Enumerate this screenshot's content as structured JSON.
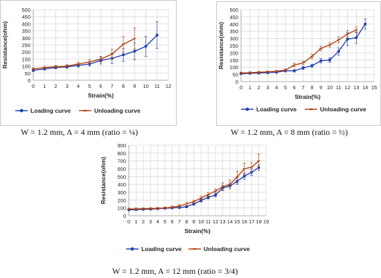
{
  "chart_data": [
    {
      "type": "line",
      "xlabel": "Strain(%)",
      "ylabel": "Resistance(ohm)",
      "xlim": [
        0,
        12
      ],
      "ylim": [
        0,
        500
      ],
      "xticks": [
        0,
        1,
        2,
        3,
        4,
        5,
        6,
        7,
        8,
        9,
        10,
        11,
        12
      ],
      "yticks": [
        0,
        50,
        100,
        150,
        200,
        250,
        300,
        350,
        400,
        450,
        500
      ],
      "legend_position": "bottom",
      "grid": true,
      "caption": "W = 1.2 mm, A = 4 mm (ratio = ¼)",
      "series": [
        {
          "name": "Loading curve",
          "color": "#2040b0",
          "x": [
            0,
            1,
            2,
            3,
            4,
            5,
            6,
            7,
            8,
            9,
            10,
            11
          ],
          "y": [
            70,
            80,
            90,
            95,
            105,
            115,
            140,
            155,
            180,
            205,
            240,
            320
          ],
          "err": [
            8,
            8,
            10,
            10,
            12,
            15,
            25,
            35,
            45,
            60,
            70,
            95
          ]
        },
        {
          "name": "Unloading curve",
          "color": "#b04010",
          "x": [
            0,
            1,
            2,
            3,
            4,
            5,
            6,
            7,
            8,
            9
          ],
          "y": [
            80,
            90,
            95,
            100,
            115,
            130,
            150,
            185,
            255,
            295
          ],
          "err": [
            8,
            8,
            10,
            10,
            12,
            15,
            20,
            35,
            55,
            75
          ]
        }
      ]
    },
    {
      "type": "line",
      "xlabel": "Strain(%)",
      "ylabel": "Resistance(ohm)",
      "xlim": [
        0,
        15
      ],
      "ylim": [
        0,
        500
      ],
      "xticks": [
        0,
        1,
        2,
        3,
        4,
        5,
        6,
        7,
        8,
        9,
        10,
        11,
        12,
        13,
        14,
        15
      ],
      "yticks": [
        0,
        50,
        100,
        150,
        200,
        250,
        300,
        350,
        400,
        450,
        500
      ],
      "legend_position": "bottom",
      "grid": true,
      "caption": "W = 1.2 mm, A = 8 mm (ratio = ½)",
      "series": [
        {
          "name": "Loading curve",
          "color": "#2040b0",
          "x": [
            0,
            1,
            2,
            3,
            4,
            5,
            6,
            7,
            8,
            9,
            10,
            11,
            12,
            13,
            14
          ],
          "y": [
            55,
            58,
            60,
            62,
            65,
            75,
            75,
            95,
            110,
            145,
            150,
            210,
            295,
            305,
            400
          ],
          "err": [
            6,
            6,
            6,
            6,
            6,
            8,
            8,
            10,
            10,
            15,
            15,
            25,
            45,
            40,
            35
          ]
        },
        {
          "name": "Unloading curve",
          "color": "#b04010",
          "x": [
            0,
            1,
            2,
            3,
            4,
            5,
            6,
            7,
            8,
            9,
            10,
            11,
            12,
            13
          ],
          "y": [
            60,
            62,
            65,
            68,
            72,
            80,
            115,
            130,
            175,
            230,
            255,
            290,
            330,
            360
          ],
          "err": [
            6,
            6,
            6,
            6,
            6,
            8,
            12,
            12,
            15,
            15,
            15,
            20,
            25,
            20
          ]
        }
      ]
    },
    {
      "type": "line",
      "xlabel": "Strain(%)",
      "ylabel": "Resistance(ohm)",
      "xlim": [
        0,
        19
      ],
      "ylim": [
        0,
        900
      ],
      "xticks": [
        0,
        1,
        2,
        3,
        4,
        5,
        6,
        7,
        8,
        9,
        10,
        11,
        12,
        13,
        14,
        15,
        16,
        17,
        18,
        19
      ],
      "yticks": [
        0,
        100,
        200,
        300,
        400,
        500,
        600,
        700,
        800,
        900
      ],
      "legend_position": "bottom",
      "grid": true,
      "caption": "W = 1.2 mm, A = 12 mm (ratio = 3/4)",
      "series": [
        {
          "name": "Loading curve",
          "color": "#2040b0",
          "x": [
            0,
            1,
            2,
            3,
            4,
            5,
            6,
            7,
            8,
            9,
            10,
            11,
            12,
            13,
            14,
            15,
            16,
            17,
            18
          ],
          "y": [
            75,
            78,
            82,
            85,
            90,
            95,
            100,
            105,
            115,
            150,
            195,
            235,
            265,
            355,
            380,
            440,
            505,
            555,
            615
          ],
          "err": [
            8,
            8,
            8,
            8,
            8,
            8,
            10,
            10,
            12,
            15,
            20,
            20,
            25,
            30,
            35,
            40,
            40,
            40,
            35
          ]
        },
        {
          "name": "Unloading curve",
          "color": "#b04010",
          "x": [
            0,
            1,
            2,
            3,
            4,
            5,
            6,
            7,
            8,
            9,
            10,
            11,
            12,
            13,
            14,
            15,
            16,
            17,
            18
          ],
          "y": [
            85,
            88,
            90,
            92,
            95,
            100,
            110,
            125,
            150,
            180,
            225,
            270,
            315,
            370,
            400,
            495,
            600,
            620,
            700
          ],
          "err": [
            12,
            12,
            12,
            12,
            12,
            12,
            15,
            18,
            20,
            20,
            25,
            25,
            25,
            50,
            55,
            75,
            70,
            60,
            90
          ]
        }
      ]
    }
  ]
}
